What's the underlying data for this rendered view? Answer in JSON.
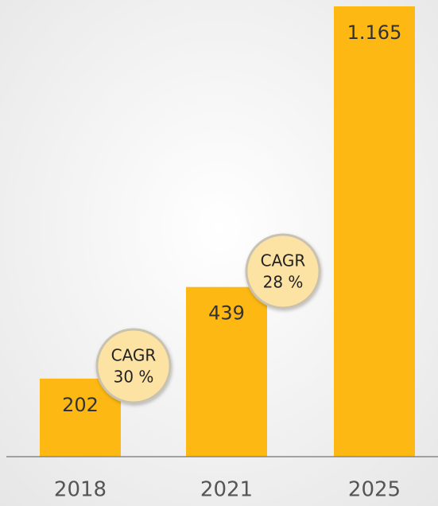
{
  "chart_data": {
    "type": "bar",
    "categories": [
      "2018",
      "2021",
      "2025"
    ],
    "values": [
      202,
      439,
      1165
    ],
    "value_labels": [
      "202",
      "439",
      "1.165"
    ],
    "color": "#fdb813",
    "annotations": [
      [
        "CAGR",
        "30 %"
      ],
      [
        "CAGR",
        "28 %"
      ]
    ]
  }
}
